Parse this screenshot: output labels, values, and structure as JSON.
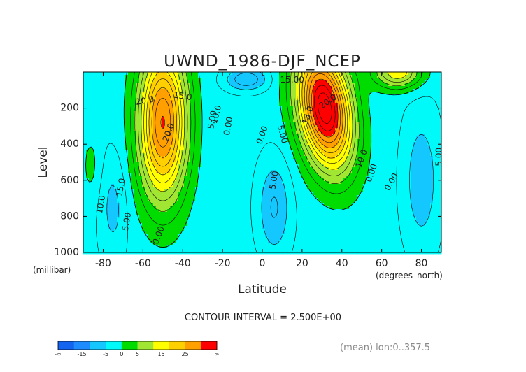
{
  "chart_data": {
    "type": "heatmap",
    "subtype": "filled-contour",
    "title": "UWND_1986-DJF_NCEP",
    "xlabel": "Latitude",
    "ylabel": "Level",
    "x_unit": "(degrees_north)",
    "y_unit": "(millibar)",
    "xlim": [
      -90,
      90
    ],
    "ylim": [
      1000,
      0
    ],
    "xticks": [
      "-80",
      "-60",
      "-40",
      "-20",
      "0",
      "20",
      "40",
      "60",
      "80"
    ],
    "yticks": [
      "200",
      "400",
      "600",
      "800",
      "1000"
    ],
    "contour_interval_text": "CONTOUR INTERVAL = 2.500E+00",
    "footnote": "(mean) lon:0..357.5",
    "contour_labels": [
      "20.0",
      "15.0",
      "10.0",
      "5.00",
      "0.00",
      "20.0",
      "15.0",
      "10.0",
      "5.00",
      "0.00",
      "5.00",
      "15.00",
      "20.0",
      "5.00",
      "10.0",
      "0.00",
      "0.00",
      "5.00",
      "0.00",
      "15.0"
    ],
    "jets": [
      {
        "name_hint": "southern",
        "lat": -50,
        "level": 280,
        "peak": 27
      },
      {
        "name_hint": "northern",
        "lat": 32,
        "level": 200,
        "peak": 34
      }
    ],
    "colorbar": {
      "labels": [
        "-∞",
        "-15",
        "-5",
        "0",
        "5",
        "15",
        "25",
        "∞"
      ],
      "colors": [
        "#1464f0",
        "#1e8cff",
        "#14c8ff",
        "#00fafa",
        "#00dc00",
        "#a0e632",
        "#ffff00",
        "#ffd000",
        "#ffa000",
        "#ff0000"
      ]
    }
  }
}
